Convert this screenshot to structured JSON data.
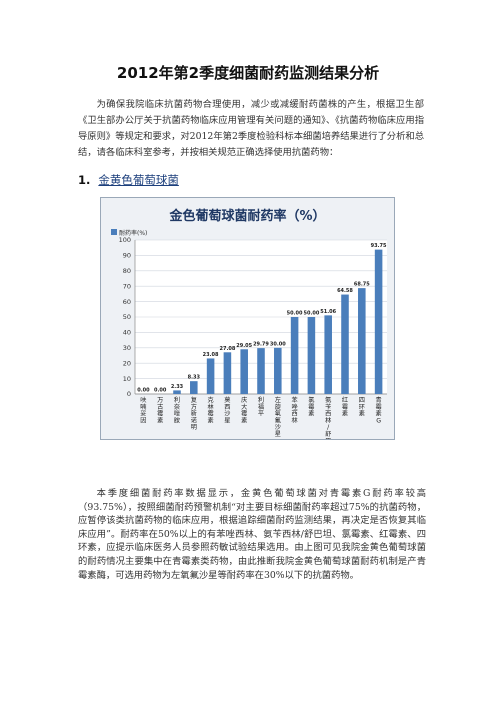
{
  "doc": {
    "title": "2012年第2季度细菌耐药监测结果分析",
    "intro": "为确保我院临床抗菌药物合理使用，减少或减缓耐药菌株的产生，根据卫生部《卫生部办公厅关于抗菌药物临床应用管理有关问题的通知》、《抗菌药物临床应用指导原则》等规定和要求，对2012年第2季度检验科标本细菌培养结果进行了分析和总结，请各临床科室参考，并按相关规范正确选择使用抗菌药物：",
    "section_number": "1.",
    "section_title": "金黄色葡萄球菌",
    "body": "本季度细菌耐药率数据显示，金黄色葡萄球菌对青霉素G耐药率较高（93.75%），按照细菌耐药预警机制“对主要目标细菌耐药率超过75%的抗菌药物，应暂停该类抗菌药物的临床应用，根据追踪细菌耐药监测结果，再决定是否恢复其临床应用”。耐药率在50%以上的有苯唑西林、氨苄西林/舒巴坦、氯霉素、红霉素、四环素，应提示临床医务人员参照药敏试验结果选用。由上图可见我院金黄色葡萄球菌的耐药情况主要集中在青霉素类药物，由此推断我院金黄色葡萄球菌耐药机制是产青霉素酶，可选用药物为左氧氟沙星等耐药率在30%以下的抗菌药物。"
  },
  "chart_data": {
    "type": "bar",
    "title": "金色葡萄球菌耐药率（%）",
    "legend": "耐药率(%)",
    "legend_position": "top-left",
    "ylim": [
      0,
      100
    ],
    "yticks": [
      0,
      10,
      20,
      30,
      40,
      50,
      60,
      70,
      80,
      90,
      100
    ],
    "grid": true,
    "bar_color": "#4a7ebb",
    "background_color": "#eef1f5",
    "categories": [
      "呋喃妥因",
      "万古霉素",
      "利奈唑胺",
      "复方新诺明",
      "克林霉素",
      "莫西沙星",
      "庆大霉素",
      "利福平",
      "左旋氧氟沙星",
      "苯唑西林",
      "氯霉素",
      "氨苄西林/舒巴坦",
      "红霉素",
      "四环素",
      "青霉素G"
    ],
    "values": [
      0.0,
      0.0,
      2.33,
      8.33,
      23.08,
      27.08,
      29.05,
      29.79,
      30.0,
      50.0,
      50.0,
      51.06,
      64.58,
      68.75,
      93.75
    ],
    "value_labels": [
      "0.00",
      "0.00",
      "2.33",
      "8.33",
      "23.08",
      "27.08",
      "29.05",
      "29.79",
      "30.00",
      "50.00",
      "50.00",
      "51.06",
      "64.58",
      "68.75",
      "93.75"
    ]
  }
}
